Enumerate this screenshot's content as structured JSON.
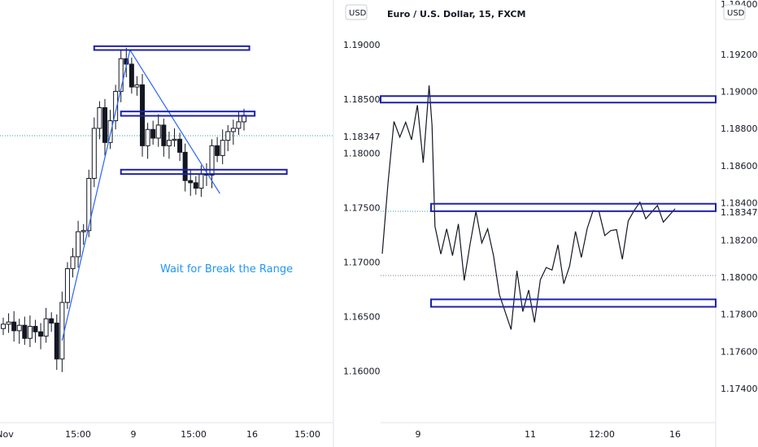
{
  "chart_data": [
    {
      "type": "candlestick",
      "currency_badge": "USD",
      "note": "Wait for Break the Range",
      "x_ticks": [
        "Nov",
        "15:00",
        "9",
        "15:00",
        "16",
        "15:00"
      ],
      "y_ticks": [
        1.19,
        1.185,
        1.18,
        1.175,
        1.17,
        1.165,
        1.16
      ],
      "y_tick_labels": [
        "1.19000",
        "1.18500",
        "1.18000",
        "1.17500",
        "1.17000",
        "1.16500",
        "1.16000"
      ],
      "ylim": [
        1.156,
        1.1932
      ],
      "current_price": 1.18347,
      "current_price_label": "1.18347",
      "colors": {
        "accent": "#1e22aa",
        "note": "#2196f3",
        "guide": "#2962ff"
      },
      "ranges": [
        {
          "low": 1.1895,
          "high": 1.18985,
          "x_from": 17,
          "x_to": 46
        },
        {
          "low": 1.18345,
          "high": 1.18385,
          "x_from": 22,
          "x_to": 47
        },
        {
          "low": 1.1781,
          "high": 1.1785,
          "x_from": 22,
          "x_to": 53
        }
      ],
      "trend_line": [
        {
          "x": 11,
          "y": 1.1628
        },
        {
          "x": 23.7,
          "y": 1.1895
        },
        {
          "x": 40.5,
          "y": 1.1763
        }
      ],
      "candles_close": [
        1.1643,
        1.1645,
        1.1637,
        1.1642,
        1.163,
        1.1641,
        1.1636,
        1.1632,
        1.1648,
        1.1644,
        1.1611,
        1.1663,
        1.1694,
        1.1705,
        1.1728,
        1.1729,
        1.1777,
        1.1823,
        1.1842,
        1.181,
        1.183,
        1.1857,
        1.1887,
        1.1882,
        1.1861,
        1.1863,
        1.1807,
        1.1822,
        1.1814,
        1.1826,
        1.1807,
        1.1812,
        1.1813,
        1.1801,
        1.1775,
        1.1773,
        1.1768,
        1.1781,
        1.178,
        1.1807,
        1.1798,
        1.1812,
        1.182,
        1.1823,
        1.1829,
        1.1835
      ]
    },
    {
      "type": "line",
      "title": "Euro / U.S. Dollar, 15, FXCM",
      "currency_badge": "USD",
      "x_ticks": [
        "9",
        "11",
        "12:00",
        "16"
      ],
      "y_ticks": [
        1.192,
        1.19,
        1.188,
        1.186,
        1.184,
        1.182,
        1.18,
        1.178,
        1.176,
        1.174
      ],
      "y_tick_labels": [
        "1.19200",
        "1.19000",
        "1.18800",
        "1.18600",
        "1.18400",
        "1.18200",
        "1.18000",
        "1.17800",
        "1.17600",
        "1.17400"
      ],
      "top_tick_label": "1.19400",
      "ylim": [
        1.1726,
        1.1944
      ],
      "current_price": 1.18347,
      "current_price_label": "1.18347",
      "ranges": [
        {
          "low": 1.1894,
          "high": 1.18975,
          "x_from": 0,
          "x_to": 100
        },
        {
          "low": 1.18355,
          "high": 1.18395,
          "x_from": 16,
          "x_to": 100
        },
        {
          "low": 1.1784,
          "high": 1.1788,
          "x_from": 16,
          "x_to": 100
        }
      ],
      "series": [
        {
          "x": [
            0,
            2,
            4,
            6,
            8,
            10,
            12,
            14,
            16,
            17,
            18,
            20,
            22,
            24,
            26,
            28,
            30,
            32,
            34,
            36,
            38,
            40,
            42,
            44,
            46,
            48,
            50,
            52,
            54,
            56,
            58,
            60,
            62,
            64,
            66,
            68,
            70,
            72,
            74,
            76,
            78,
            80,
            82,
            84,
            86,
            88,
            90,
            92,
            94,
            96,
            98,
            100
          ],
          "y": [
            1.1818,
            1.1853,
            1.1882,
            1.187,
            1.1887,
            1.1874,
            1.1889,
            1.1867,
            1.1905,
            1.188,
            1.1822,
            1.1816,
            1.1826,
            1.1808,
            1.1834,
            1.18,
            1.1816,
            1.183,
            1.1822,
            1.1826,
            1.1808,
            1.1796,
            1.1783,
            1.177,
            1.1798,
            1.1785,
            1.1793,
            1.1772,
            1.1804,
            1.1807,
            1.1802,
            1.1812,
            1.18,
            1.1806,
            1.1821,
            1.1816,
            1.1828,
            1.1834,
            1.183,
            1.1826,
            1.1825,
            1.1822,
            1.1815,
            1.1832,
            1.1834,
            1.1835,
            1.1835,
            1.1835,
            1.1835,
            1.1835,
            1.1835,
            1.1835
          ]
        }
      ]
    }
  ]
}
